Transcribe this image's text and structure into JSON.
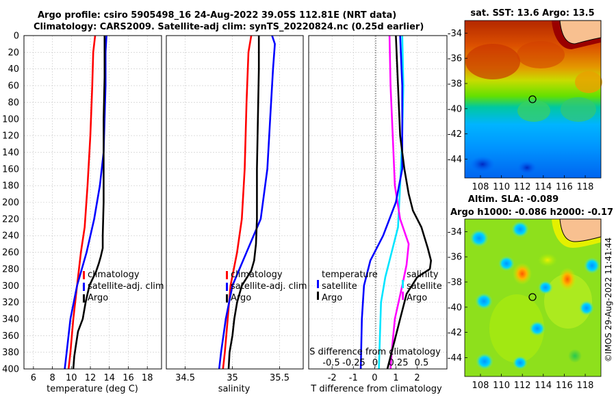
{
  "header": {
    "line1": "Argo profile: csiro 5905498_16 24-Aug-2022 39.05S 112.81E (NRT data)",
    "line2": "Climatology: CARS2009. Satellite-adj clim: synTS_20220824.nc (0.25d earlier)"
  },
  "watermark": "©IMOS 29-Aug-2022 11:41:44",
  "colors": {
    "climatology": "#ff0000",
    "satellite": "#0000ff",
    "argo": "#000000",
    "sat_salinity": "#00e5ff",
    "salinity_diff": "#ff00ff",
    "grid": "#c8c8c8"
  },
  "chart_data": [
    {
      "id": "temperature",
      "type": "line",
      "xlabel": "temperature (deg C)",
      "ylabel": "",
      "xlim": [
        5,
        19.5
      ],
      "ylim": [
        400,
        0
      ],
      "xticks": [
        6,
        8,
        10,
        12,
        14,
        16,
        18
      ],
      "yticks": [
        0,
        20,
        40,
        60,
        80,
        100,
        120,
        140,
        160,
        180,
        200,
        220,
        240,
        260,
        280,
        300,
        320,
        340,
        360,
        380,
        400
      ],
      "legend": [
        "climatology",
        "satellite-adj. clim",
        "Argo"
      ],
      "series": [
        {
          "name": "climatology",
          "color": "#ff0000",
          "points": [
            [
              12.5,
              0
            ],
            [
              12.3,
              20
            ],
            [
              12.2,
              60
            ],
            [
              12.0,
              120
            ],
            [
              11.7,
              180
            ],
            [
              11.4,
              230
            ],
            [
              11.0,
              260
            ],
            [
              10.6,
              300
            ],
            [
              10.2,
              340
            ],
            [
              9.9,
              380
            ],
            [
              9.7,
              400
            ]
          ]
        },
        {
          "name": "satellite-adj. clim",
          "color": "#0000ff",
          "points": [
            [
              13.7,
              0
            ],
            [
              13.6,
              20
            ],
            [
              13.6,
              60
            ],
            [
              13.5,
              100
            ],
            [
              13.4,
              140
            ],
            [
              13.0,
              180
            ],
            [
              12.4,
              220
            ],
            [
              11.6,
              260
            ],
            [
              10.6,
              300
            ],
            [
              9.9,
              340
            ],
            [
              9.5,
              380
            ],
            [
              9.3,
              400
            ]
          ]
        },
        {
          "name": "Argo",
          "color": "#000000",
          "points": [
            [
              13.5,
              0
            ],
            [
              13.5,
              50
            ],
            [
              13.4,
              100
            ],
            [
              13.4,
              150
            ],
            [
              13.4,
              200
            ],
            [
              13.3,
              240
            ],
            [
              13.3,
              255
            ],
            [
              13.1,
              265
            ],
            [
              12.9,
              273
            ],
            [
              12.6,
              283
            ],
            [
              11.9,
              300
            ],
            [
              11.5,
              320
            ],
            [
              11.2,
              340
            ],
            [
              10.7,
              355
            ],
            [
              10.5,
              370
            ],
            [
              10.3,
              385
            ],
            [
              10.2,
              400
            ]
          ]
        }
      ]
    },
    {
      "id": "salinity",
      "type": "line",
      "xlabel": "salinity",
      "xlim": [
        34.3,
        35.75
      ],
      "ylim": [
        400,
        0
      ],
      "xticks": [
        34.5,
        35,
        35.5
      ],
      "legend": [
        "climatology",
        "satellite-adj. clim",
        "Argo"
      ],
      "series": [
        {
          "name": "climatology",
          "color": "#ff0000",
          "points": [
            [
              35.2,
              0
            ],
            [
              35.17,
              20
            ],
            [
              35.15,
              80
            ],
            [
              35.13,
              160
            ],
            [
              35.1,
              220
            ],
            [
              35.05,
              260
            ],
            [
              34.98,
              300
            ],
            [
              34.95,
              340
            ],
            [
              34.92,
              380
            ],
            [
              34.9,
              400
            ]
          ]
        },
        {
          "name": "satellite-adj. clim",
          "color": "#0000ff",
          "points": [
            [
              35.42,
              0
            ],
            [
              35.45,
              10
            ],
            [
              35.43,
              40
            ],
            [
              35.4,
              100
            ],
            [
              35.37,
              160
            ],
            [
              35.3,
              220
            ],
            [
              35.15,
              260
            ],
            [
              35.0,
              300
            ],
            [
              34.93,
              340
            ],
            [
              34.88,
              380
            ],
            [
              34.86,
              400
            ]
          ]
        },
        {
          "name": "Argo",
          "color": "#000000",
          "points": [
            [
              35.28,
              0
            ],
            [
              35.28,
              40
            ],
            [
              35.27,
              100
            ],
            [
              35.26,
              160
            ],
            [
              35.26,
              220
            ],
            [
              35.25,
              250
            ],
            [
              35.23,
              270
            ],
            [
              35.2,
              282
            ],
            [
              35.1,
              300
            ],
            [
              35.05,
              320
            ],
            [
              35.02,
              340
            ],
            [
              35.0,
              360
            ],
            [
              34.97,
              380
            ],
            [
              34.96,
              400
            ]
          ]
        }
      ]
    },
    {
      "id": "difference",
      "type": "line",
      "xlabel": "T difference from climatology",
      "xlabel_top": "S difference from climatology",
      "xlim": [
        -3.1,
        3.4
      ],
      "ylim": [
        400,
        0
      ],
      "xticks": [
        -2,
        -1,
        0,
        1,
        2
      ],
      "top_ticks": [
        "-0.5",
        "-0.25",
        "0",
        "0.25",
        "0.5"
      ],
      "legend_t": [
        "temperature",
        "satellite",
        "Argo"
      ],
      "legend_s": [
        "salinity",
        "satellite",
        "Argo"
      ],
      "series": [
        {
          "name": "salinity satellite",
          "color": "#00e5ff",
          "points": [
            [
              1.3,
              0
            ],
            [
              1.35,
              60
            ],
            [
              1.3,
              120
            ],
            [
              1.2,
              180
            ],
            [
              1.1,
              230
            ],
            [
              0.8,
              260
            ],
            [
              0.5,
              290
            ],
            [
              0.3,
              320
            ],
            [
              0.25,
              360
            ],
            [
              0.2,
              400
            ]
          ]
        },
        {
          "name": "salinity Argo",
          "color": "#ff00ff",
          "points": [
            [
              0.7,
              0
            ],
            [
              0.75,
              60
            ],
            [
              0.85,
              120
            ],
            [
              0.95,
              180
            ],
            [
              1.2,
              220
            ],
            [
              1.6,
              250
            ],
            [
              1.5,
              275
            ],
            [
              1.3,
              300
            ],
            [
              0.95,
              340
            ],
            [
              0.8,
              380
            ],
            [
              0.75,
              400
            ]
          ]
        },
        {
          "name": "temperature satellite",
          "color": "#0000ff",
          "points": [
            [
              1.2,
              0
            ],
            [
              1.3,
              60
            ],
            [
              1.3,
              120
            ],
            [
              1.3,
              160
            ],
            [
              1.0,
              200
            ],
            [
              0.4,
              240
            ],
            [
              -0.2,
              270
            ],
            [
              -0.5,
              300
            ],
            [
              -0.6,
              340
            ],
            [
              -0.65,
              400
            ]
          ]
        },
        {
          "name": "temperature Argo",
          "color": "#000000",
          "points": [
            [
              1.0,
              0
            ],
            [
              1.1,
              60
            ],
            [
              1.2,
              120
            ],
            [
              1.4,
              160
            ],
            [
              1.6,
              190
            ],
            [
              1.8,
              210
            ],
            [
              2.2,
              230
            ],
            [
              2.5,
              255
            ],
            [
              2.65,
              270
            ],
            [
              2.6,
              280
            ],
            [
              2.0,
              290
            ],
            [
              1.5,
              310
            ],
            [
              1.2,
              340
            ],
            [
              0.9,
              370
            ],
            [
              0.6,
              400
            ]
          ]
        }
      ]
    },
    {
      "id": "sst_map",
      "type": "heatmap",
      "title": "sat. SST: 13.6 Argo: 13.5",
      "xticks": [
        "108",
        "110",
        "112",
        "114",
        "116",
        "118"
      ],
      "yticks": [
        "-34",
        "-36",
        "-38",
        "-40",
        "-42",
        "-44"
      ],
      "xlim": [
        106.5,
        119.5
      ],
      "ylim": [
        -45.5,
        -33
      ],
      "argo_marker": [
        112.81,
        -39.05
      ]
    },
    {
      "id": "sla_map",
      "type": "heatmap",
      "title": "Altim. SLA: -0.089",
      "subtitle": "Argo h1000: -0.086 h2000: -0.17",
      "xticks": [
        "108",
        "110",
        "112",
        "114",
        "116",
        "118"
      ],
      "yticks": [
        "-34",
        "-36",
        "-38",
        "-40",
        "-42",
        "-44"
      ],
      "xlim": [
        106.5,
        119.5
      ],
      "ylim": [
        -45.5,
        -33
      ],
      "argo_marker": [
        112.81,
        -39.05
      ]
    }
  ]
}
